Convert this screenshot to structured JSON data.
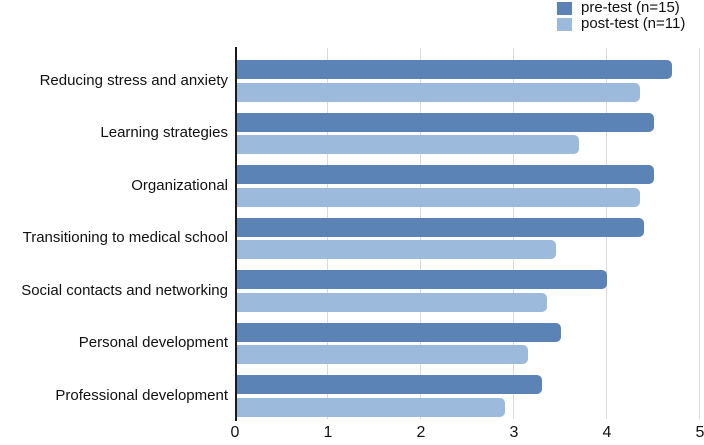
{
  "figure_title": "Pre-test vs post-test ratings bar chart",
  "legend": {
    "position": "top-right"
  },
  "chart_data": {
    "type": "bar",
    "orientation": "horizontal",
    "title": "",
    "xlabel": "",
    "ylabel": "",
    "xlim": [
      0,
      5
    ],
    "x_ticks": [
      "0",
      "1",
      "2",
      "3",
      "4",
      "5"
    ],
    "grid": true,
    "gridline_color": "#d9d9d9",
    "axis_line_color": "#1a1a1a",
    "legend_position": "top-right",
    "categories": [
      "Reducing stress and anxiety",
      "Learning strategies",
      "Organizational",
      "Transitioning to medical school",
      "Social contacts and networking",
      "Personal development",
      "Professional development"
    ],
    "series": [
      {
        "name": "pre-test (n=15)",
        "color": "#5b83b5",
        "values": [
          4.7,
          4.5,
          4.5,
          4.4,
          4.0,
          3.5,
          3.3
        ]
      },
      {
        "name": "post-test (n=11)",
        "color": "#9bbadc",
        "values": [
          4.35,
          3.7,
          4.35,
          3.45,
          3.35,
          3.15,
          2.9
        ]
      }
    ]
  }
}
